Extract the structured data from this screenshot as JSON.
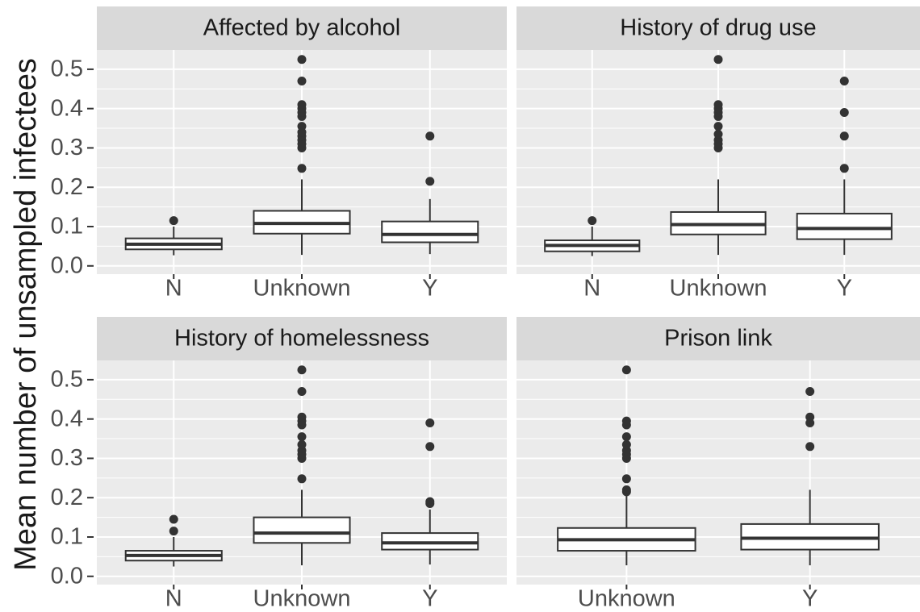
{
  "ylabel": "Mean number of unsampled infectees",
  "ylim": [
    -0.021,
    0.549
  ],
  "yticks": [
    {
      "value": 0,
      "label": "0.0"
    },
    0.1,
    0.2,
    0.3,
    0.4,
    0.5
  ],
  "grid": true,
  "chart_data": [
    {
      "type": "box",
      "title": "Affected by alcohol",
      "categories": [
        "N",
        "Unknown",
        "Y"
      ],
      "boxes": [
        {
          "whislo": 0.027,
          "q1": 0.042,
          "med": 0.055,
          "q3": 0.07,
          "whishi": 0.1,
          "outliers": [
            0.115
          ]
        },
        {
          "whislo": 0.028,
          "q1": 0.082,
          "med": 0.108,
          "q3": 0.14,
          "whishi": 0.22,
          "outliers": [
            0.248,
            0.3,
            0.31,
            0.32,
            0.33,
            0.34,
            0.355,
            0.38,
            0.39,
            0.4,
            0.41,
            0.47,
            0.525
          ]
        },
        {
          "whislo": 0.03,
          "q1": 0.06,
          "med": 0.08,
          "q3": 0.113,
          "whishi": 0.17,
          "outliers": [
            0.215,
            0.33
          ]
        }
      ]
    },
    {
      "type": "box",
      "title": "History of drug use",
      "categories": [
        "N",
        "Unknown",
        "Y"
      ],
      "boxes": [
        {
          "whislo": 0.025,
          "q1": 0.037,
          "med": 0.052,
          "q3": 0.065,
          "whishi": 0.1,
          "outliers": [
            0.115
          ]
        },
        {
          "whislo": 0.028,
          "q1": 0.08,
          "med": 0.105,
          "q3": 0.137,
          "whishi": 0.22,
          "outliers": [
            0.3,
            0.31,
            0.32,
            0.335,
            0.355,
            0.38,
            0.39,
            0.4,
            0.41,
            0.525
          ]
        },
        {
          "whislo": 0.028,
          "q1": 0.068,
          "med": 0.095,
          "q3": 0.133,
          "whishi": 0.22,
          "outliers": [
            0.248,
            0.33,
            0.39,
            0.47
          ]
        }
      ]
    },
    {
      "type": "box",
      "title": "History of homelessness",
      "categories": [
        "N",
        "Unknown",
        "Y"
      ],
      "boxes": [
        {
          "whislo": 0.025,
          "q1": 0.04,
          "med": 0.053,
          "q3": 0.065,
          "whishi": 0.1,
          "outliers": [
            0.115,
            0.145
          ]
        },
        {
          "whislo": 0.028,
          "q1": 0.085,
          "med": 0.11,
          "q3": 0.15,
          "whishi": 0.22,
          "outliers": [
            0.248,
            0.3,
            0.31,
            0.32,
            0.335,
            0.355,
            0.385,
            0.395,
            0.405,
            0.47,
            0.525
          ]
        },
        {
          "whislo": 0.03,
          "q1": 0.068,
          "med": 0.085,
          "q3": 0.11,
          "whishi": 0.17,
          "outliers": [
            0.185,
            0.19,
            0.33,
            0.39
          ]
        }
      ]
    },
    {
      "type": "box",
      "title": "Prison link",
      "categories": [
        "Unknown",
        "Y"
      ],
      "boxes": [
        {
          "whislo": 0.028,
          "q1": 0.065,
          "med": 0.093,
          "q3": 0.123,
          "whishi": 0.21,
          "outliers": [
            0.215,
            0.22,
            0.248,
            0.3,
            0.31,
            0.32,
            0.335,
            0.355,
            0.385,
            0.395,
            0.525
          ]
        },
        {
          "whislo": 0.028,
          "q1": 0.068,
          "med": 0.097,
          "q3": 0.133,
          "whishi": 0.22,
          "outliers": [
            0.33,
            0.39,
            0.405,
            0.47
          ]
        }
      ]
    }
  ]
}
